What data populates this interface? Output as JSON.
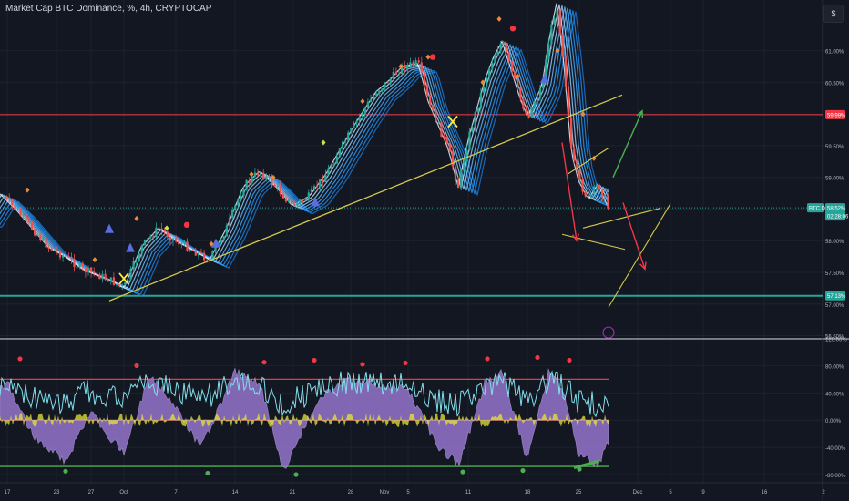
{
  "header": {
    "title": "Market Cap BTC Dominance, %, 4h, CRYPTOCAP",
    "settings_label": "$"
  },
  "chart_data": [
    {
      "type": "candlestick",
      "title": "Market Cap BTC Dominance, %, 4h, CRYPTOCAP",
      "x_tick_labels": [
        "17",
        "23",
        "27",
        "Oct",
        "7",
        "14",
        "21",
        "28",
        "Nov",
        "5",
        "11",
        "18",
        "25",
        "Dec",
        "5",
        "9",
        "16",
        "2"
      ],
      "y_tick_labels": [
        "61.00%",
        "60.50%",
        "60.00%",
        "59.50%",
        "59.00%",
        "58.50%",
        "58.00%",
        "57.50%",
        "57.00%",
        "56.50%"
      ],
      "ylim": [
        56.45,
        61.8
      ],
      "price_tags": [
        {
          "label": "59.99%",
          "value": 59.99,
          "color": "#f23645"
        },
        {
          "label": "BTC.D",
          "value": 58.52,
          "color": "#26a69a"
        },
        {
          "label": "58.52%",
          "value": 58.52,
          "color": "#26a69a"
        },
        {
          "label": "02:28:06",
          "value": 58.52,
          "color": "#26a69a"
        },
        {
          "label": "57.13%",
          "value": 57.13,
          "color": "#26a69a"
        }
      ],
      "horizontal_levels": [
        {
          "value": 59.99,
          "color": "#f23645"
        },
        {
          "value": 57.13,
          "color": "#26a69a"
        }
      ],
      "price_path": [
        {
          "x": "Sep 14",
          "y": 58.35
        },
        {
          "x": "Sep 16",
          "y": 58.75
        },
        {
          "x": "Sep 18",
          "y": 58.5
        },
        {
          "x": "Sep 20",
          "y": 58.2
        },
        {
          "x": "Sep 22",
          "y": 57.9
        },
        {
          "x": "Sep 24",
          "y": 57.75
        },
        {
          "x": "Sep 26",
          "y": 57.55
        },
        {
          "x": "Sep 29",
          "y": 57.4
        },
        {
          "x": "Oct 1",
          "y": 57.25
        },
        {
          "x": "Oct 3",
          "y": 57.9
        },
        {
          "x": "Oct 5",
          "y": 58.2
        },
        {
          "x": "Oct 7",
          "y": 58.0
        },
        {
          "x": "Oct 9",
          "y": 57.85
        },
        {
          "x": "Oct 11",
          "y": 57.7
        },
        {
          "x": "Oct 13",
          "y": 58.2
        },
        {
          "x": "Oct 15",
          "y": 58.85
        },
        {
          "x": "Oct 17",
          "y": 59.1
        },
        {
          "x": "Oct 19",
          "y": 58.85
        },
        {
          "x": "Oct 21",
          "y": 58.55
        },
        {
          "x": "Oct 23",
          "y": 58.7
        },
        {
          "x": "Oct 25",
          "y": 59.05
        },
        {
          "x": "Oct 27",
          "y": 59.5
        },
        {
          "x": "Oct 29",
          "y": 59.95
        },
        {
          "x": "Oct 31",
          "y": 60.35
        },
        {
          "x": "Nov 2",
          "y": 60.55
        },
        {
          "x": "Nov 4",
          "y": 60.75
        },
        {
          "x": "Nov 6",
          "y": 60.8
        },
        {
          "x": "Nov 7",
          "y": 60.2
        },
        {
          "x": "Nov 9",
          "y": 59.45
        },
        {
          "x": "Nov 10",
          "y": 58.85
        },
        {
          "x": "Nov 11",
          "y": 59.6
        },
        {
          "x": "Nov 13",
          "y": 60.55
        },
        {
          "x": "Nov 14",
          "y": 60.9
        },
        {
          "x": "Nov 15",
          "y": 61.15
        },
        {
          "x": "Nov 17",
          "y": 60.3
        },
        {
          "x": "Nov 18",
          "y": 59.95
        },
        {
          "x": "Nov 20",
          "y": 60.45
        },
        {
          "x": "Nov 21",
          "y": 61.2
        },
        {
          "x": "Nov 22",
          "y": 61.75
        },
        {
          "x": "Nov 23",
          "y": 60.8
        },
        {
          "x": "Nov 24",
          "y": 59.4
        },
        {
          "x": "Nov 25",
          "y": 58.95
        },
        {
          "x": "Nov 26",
          "y": 58.65
        },
        {
          "x": "Nov 27",
          "y": 58.9
        },
        {
          "x": "Nov 28",
          "y": 58.52
        }
      ],
      "colors": {
        "up": "#26a69a",
        "down": "#ef5350",
        "ribbon": "#90caf9",
        "trend": "#d4c94a",
        "arrow_down": "#f23645",
        "arrow_up": "#4caf50",
        "channel": "#d4c94a"
      }
    },
    {
      "type": "area",
      "title": "",
      "y_tick_labels": [
        "120.00%",
        "80.00%",
        "40.00%",
        "0.00%",
        "-40.00%",
        "-80.00%"
      ],
      "ylim": [
        -92,
        118
      ],
      "levels": [
        {
          "value": 60,
          "color": "#f23645"
        },
        {
          "value": -68,
          "color": "#4caf50"
        }
      ],
      "oscillator_path": [
        {
          "x": "Sep 14",
          "y": 30
        },
        {
          "x": "Sep 17",
          "y": 55
        },
        {
          "x": "Sep 20",
          "y": -20
        },
        {
          "x": "Sep 24",
          "y": -60
        },
        {
          "x": "Sep 27",
          "y": 10
        },
        {
          "x": "Oct 1",
          "y": -50
        },
        {
          "x": "Oct 4",
          "y": 65
        },
        {
          "x": "Oct 7",
          "y": 20
        },
        {
          "x": "Oct 10",
          "y": -40
        },
        {
          "x": "Oct 14",
          "y": 70
        },
        {
          "x": "Oct 17",
          "y": 55
        },
        {
          "x": "Oct 20",
          "y": -75
        },
        {
          "x": "Oct 24",
          "y": 30
        },
        {
          "x": "Oct 28",
          "y": 60
        },
        {
          "x": "Nov 1",
          "y": 50
        },
        {
          "x": "Nov 5",
          "y": 45
        },
        {
          "x": "Nov 8",
          "y": -40
        },
        {
          "x": "Nov 10",
          "y": -65
        },
        {
          "x": "Nov 13",
          "y": 55
        },
        {
          "x": "Nov 15",
          "y": 70
        },
        {
          "x": "Nov 18",
          "y": -60
        },
        {
          "x": "Nov 21",
          "y": 75
        },
        {
          "x": "Nov 23",
          "y": 40
        },
        {
          "x": "Nov 25",
          "y": -50
        },
        {
          "x": "Nov 27",
          "y": -65
        },
        {
          "x": "Nov 28",
          "y": -35
        }
      ],
      "colors": {
        "area_pos": "#9575cd",
        "area_neg": "#9575cd",
        "line": "#80deea",
        "yellow": "#e6e633",
        "red": "#f23645",
        "green": "#4caf50"
      }
    }
  ]
}
